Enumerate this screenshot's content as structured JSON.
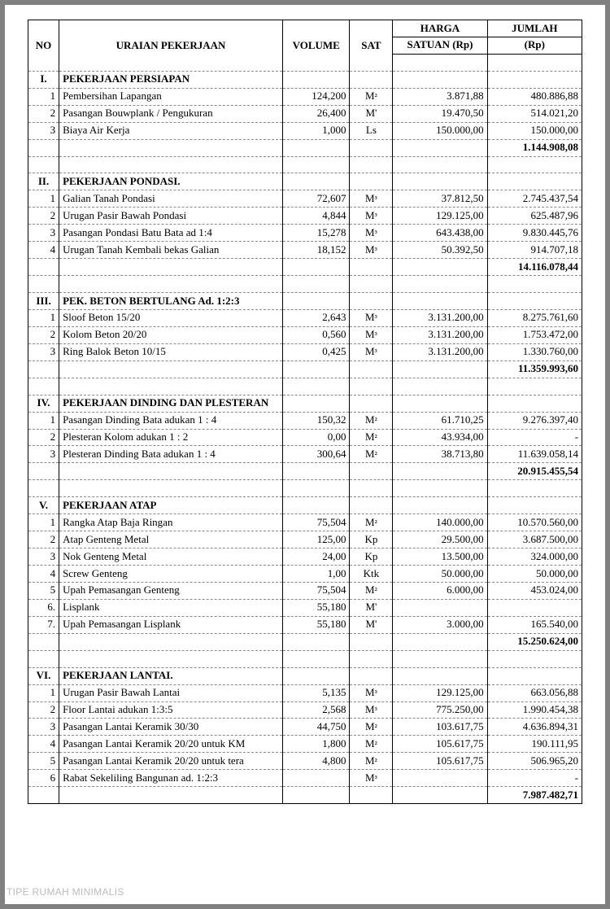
{
  "header": {
    "no": "NO",
    "uraian": "URAIAN PEKERJAAN",
    "volume": "VOLUME",
    "sat": "SAT",
    "harga": "HARGA",
    "satuan": "SATUAN (Rp)",
    "jumlah": "JUMLAH",
    "rp": "(Rp)"
  },
  "watermark": "TIPE RUMAH MINIMALIS",
  "sections": [
    {
      "roman": "I.",
      "title": "PEKERJAAN PERSIAPAN",
      "rows": [
        {
          "n": "1",
          "d": "Pembersihan Lapangan",
          "v": "124,200",
          "s": "M",
          "sup": "sq",
          "h": "3.871,88",
          "j": "480.886,88"
        },
        {
          "n": "2",
          "d": "Pasangan Bouwplank / Pengukuran",
          "v": "26,400",
          "s": "M'",
          "sup": "",
          "h": "19.470,50",
          "j": "514.021,20"
        },
        {
          "n": "3",
          "d": "Biaya Air Kerja",
          "v": "1,000",
          "s": "Ls",
          "sup": "",
          "h": "150.000,00",
          "j": "150.000,00"
        }
      ],
      "subtotal": "1.144.908,08"
    },
    {
      "roman": "II.",
      "title": "PEKERJAAN PONDASI.",
      "rows": [
        {
          "n": "1",
          "d": "Galian Tanah Pondasi",
          "v": "72,607",
          "s": "M",
          "sup": "cu",
          "h": "37.812,50",
          "j": "2.745.437,54"
        },
        {
          "n": "2",
          "d": "Urugan Pasir Bawah Pondasi",
          "v": "4,844",
          "s": "M",
          "sup": "cu",
          "h": "129.125,00",
          "j": "625.487,96"
        },
        {
          "n": "3",
          "d": "Pasangan Pondasi Batu Bata ad 1:4",
          "v": "15,278",
          "s": "M",
          "sup": "cu",
          "h": "643.438,00",
          "j": "9.830.445,76"
        },
        {
          "n": "4",
          "d": "Urugan Tanah Kembali bekas Galian",
          "v": "18,152",
          "s": "M",
          "sup": "cu",
          "h": "50.392,50",
          "j": "914.707,18"
        }
      ],
      "subtotal": "14.116.078,44"
    },
    {
      "roman": "III.",
      "title": "PEK. BETON BERTULANG Ad. 1:2:3",
      "rows": [
        {
          "n": "1",
          "d": "Sloof Beton 15/20",
          "v": "2,643",
          "s": "M",
          "sup": "cu",
          "h": "3.131.200,00",
          "j": "8.275.761,60"
        },
        {
          "n": "2",
          "d": "Kolom Beton 20/20",
          "v": "0,560",
          "s": "M",
          "sup": "cu",
          "h": "3.131.200,00",
          "j": "1.753.472,00"
        },
        {
          "n": "3",
          "d": "Ring Balok Beton 10/15",
          "v": "0,425",
          "s": "M",
          "sup": "cu",
          "h": "3.131.200,00",
          "j": "1.330.760,00"
        }
      ],
      "subtotal": "11.359.993,60"
    },
    {
      "roman": "IV.",
      "title": "PEKERJAAN DINDING DAN PLESTERAN",
      "rows": [
        {
          "n": "1",
          "d": "Pasangan Dinding Bata adukan 1 : 4",
          "v": "150,32",
          "s": "M",
          "sup": "sq",
          "h": "61.710,25",
          "j": "9.276.397,40"
        },
        {
          "n": "2",
          "d": "Plesteran Kolom adukan 1 : 2",
          "v": "0,00",
          "s": "M",
          "sup": "sq",
          "h": "43.934,00",
          "j": "-"
        },
        {
          "n": "3",
          "d": "Plesteran Dinding Bata adukan 1 : 4",
          "v": "300,64",
          "s": "M",
          "sup": "sq",
          "h": "38.713,80",
          "j": "11.639.058,14"
        }
      ],
      "subtotal": "20.915.455,54"
    },
    {
      "roman": "V.",
      "title": "PEKERJAAN ATAP",
      "rows": [
        {
          "n": "1",
          "d": "Rangka Atap Baja Ringan",
          "v": "75,504",
          "s": "M",
          "sup": "sq",
          "h": "140.000,00",
          "j": "10.570.560,00"
        },
        {
          "n": "2",
          "d": "Atap Genteng Metal",
          "v": "125,00",
          "s": "Kp",
          "sup": "",
          "h": "29.500,00",
          "j": "3.687.500,00"
        },
        {
          "n": "3",
          "d": "Nok Genteng Metal",
          "v": "24,00",
          "s": "Kp",
          "sup": "",
          "h": "13.500,00",
          "j": "324.000,00"
        },
        {
          "n": "4",
          "d": "Screw Genteng",
          "v": "1,00",
          "s": "Ktk",
          "sup": "",
          "h": "50.000,00",
          "j": "50.000,00"
        },
        {
          "n": "5",
          "d": "Upah Pemasangan Genteng",
          "v": "75,504",
          "s": "M",
          "sup": "sq",
          "h": "6.000,00",
          "j": "453.024,00"
        },
        {
          "n": "6.",
          "d": "Lisplank",
          "v": "55,180",
          "s": "M'",
          "sup": "",
          "h": "",
          "j": ""
        },
        {
          "n": "7.",
          "d": "Upah Pemasangan Lisplank",
          "v": "55,180",
          "s": "M'",
          "sup": "",
          "h": "3.000,00",
          "j": "165.540,00"
        }
      ],
      "subtotal": "15.250.624,00"
    },
    {
      "roman": "VI.",
      "title": "PEKERJAAN LANTAI.",
      "rows": [
        {
          "n": "1",
          "d": "Urugan Pasir Bawah Lantai",
          "v": "5,135",
          "s": "M",
          "sup": "cu",
          "h": "129.125,00",
          "j": "663.056,88"
        },
        {
          "n": "2",
          "d": "Floor Lantai adukan 1:3:5",
          "v": "2,568",
          "s": "M",
          "sup": "cu",
          "h": "775.250,00",
          "j": "1.990.454,38"
        },
        {
          "n": "3",
          "d": "Pasangan Lantai Keramik 30/30",
          "v": "44,750",
          "s": "M",
          "sup": "sq",
          "h": "103.617,75",
          "j": "4.636.894,31"
        },
        {
          "n": "4",
          "d": "Pasangan Lantai Keramik 20/20 untuk KM",
          "v": "1,800",
          "s": "M",
          "sup": "sq",
          "h": "105.617,75",
          "j": "190.111,95"
        },
        {
          "n": "5",
          "d": "Pasangan Lantai Keramik 20/20 untuk tera",
          "v": "4,800",
          "s": "M",
          "sup": "sq",
          "h": "105.617,75",
          "j": "506.965,20"
        },
        {
          "n": "6",
          "d": "Rabat Sekeliling Bangunan ad. 1:2:3",
          "v": "",
          "s": "M",
          "sup": "cu",
          "h": "",
          "j": "-"
        }
      ],
      "subtotal": "7.987.482,71"
    }
  ]
}
